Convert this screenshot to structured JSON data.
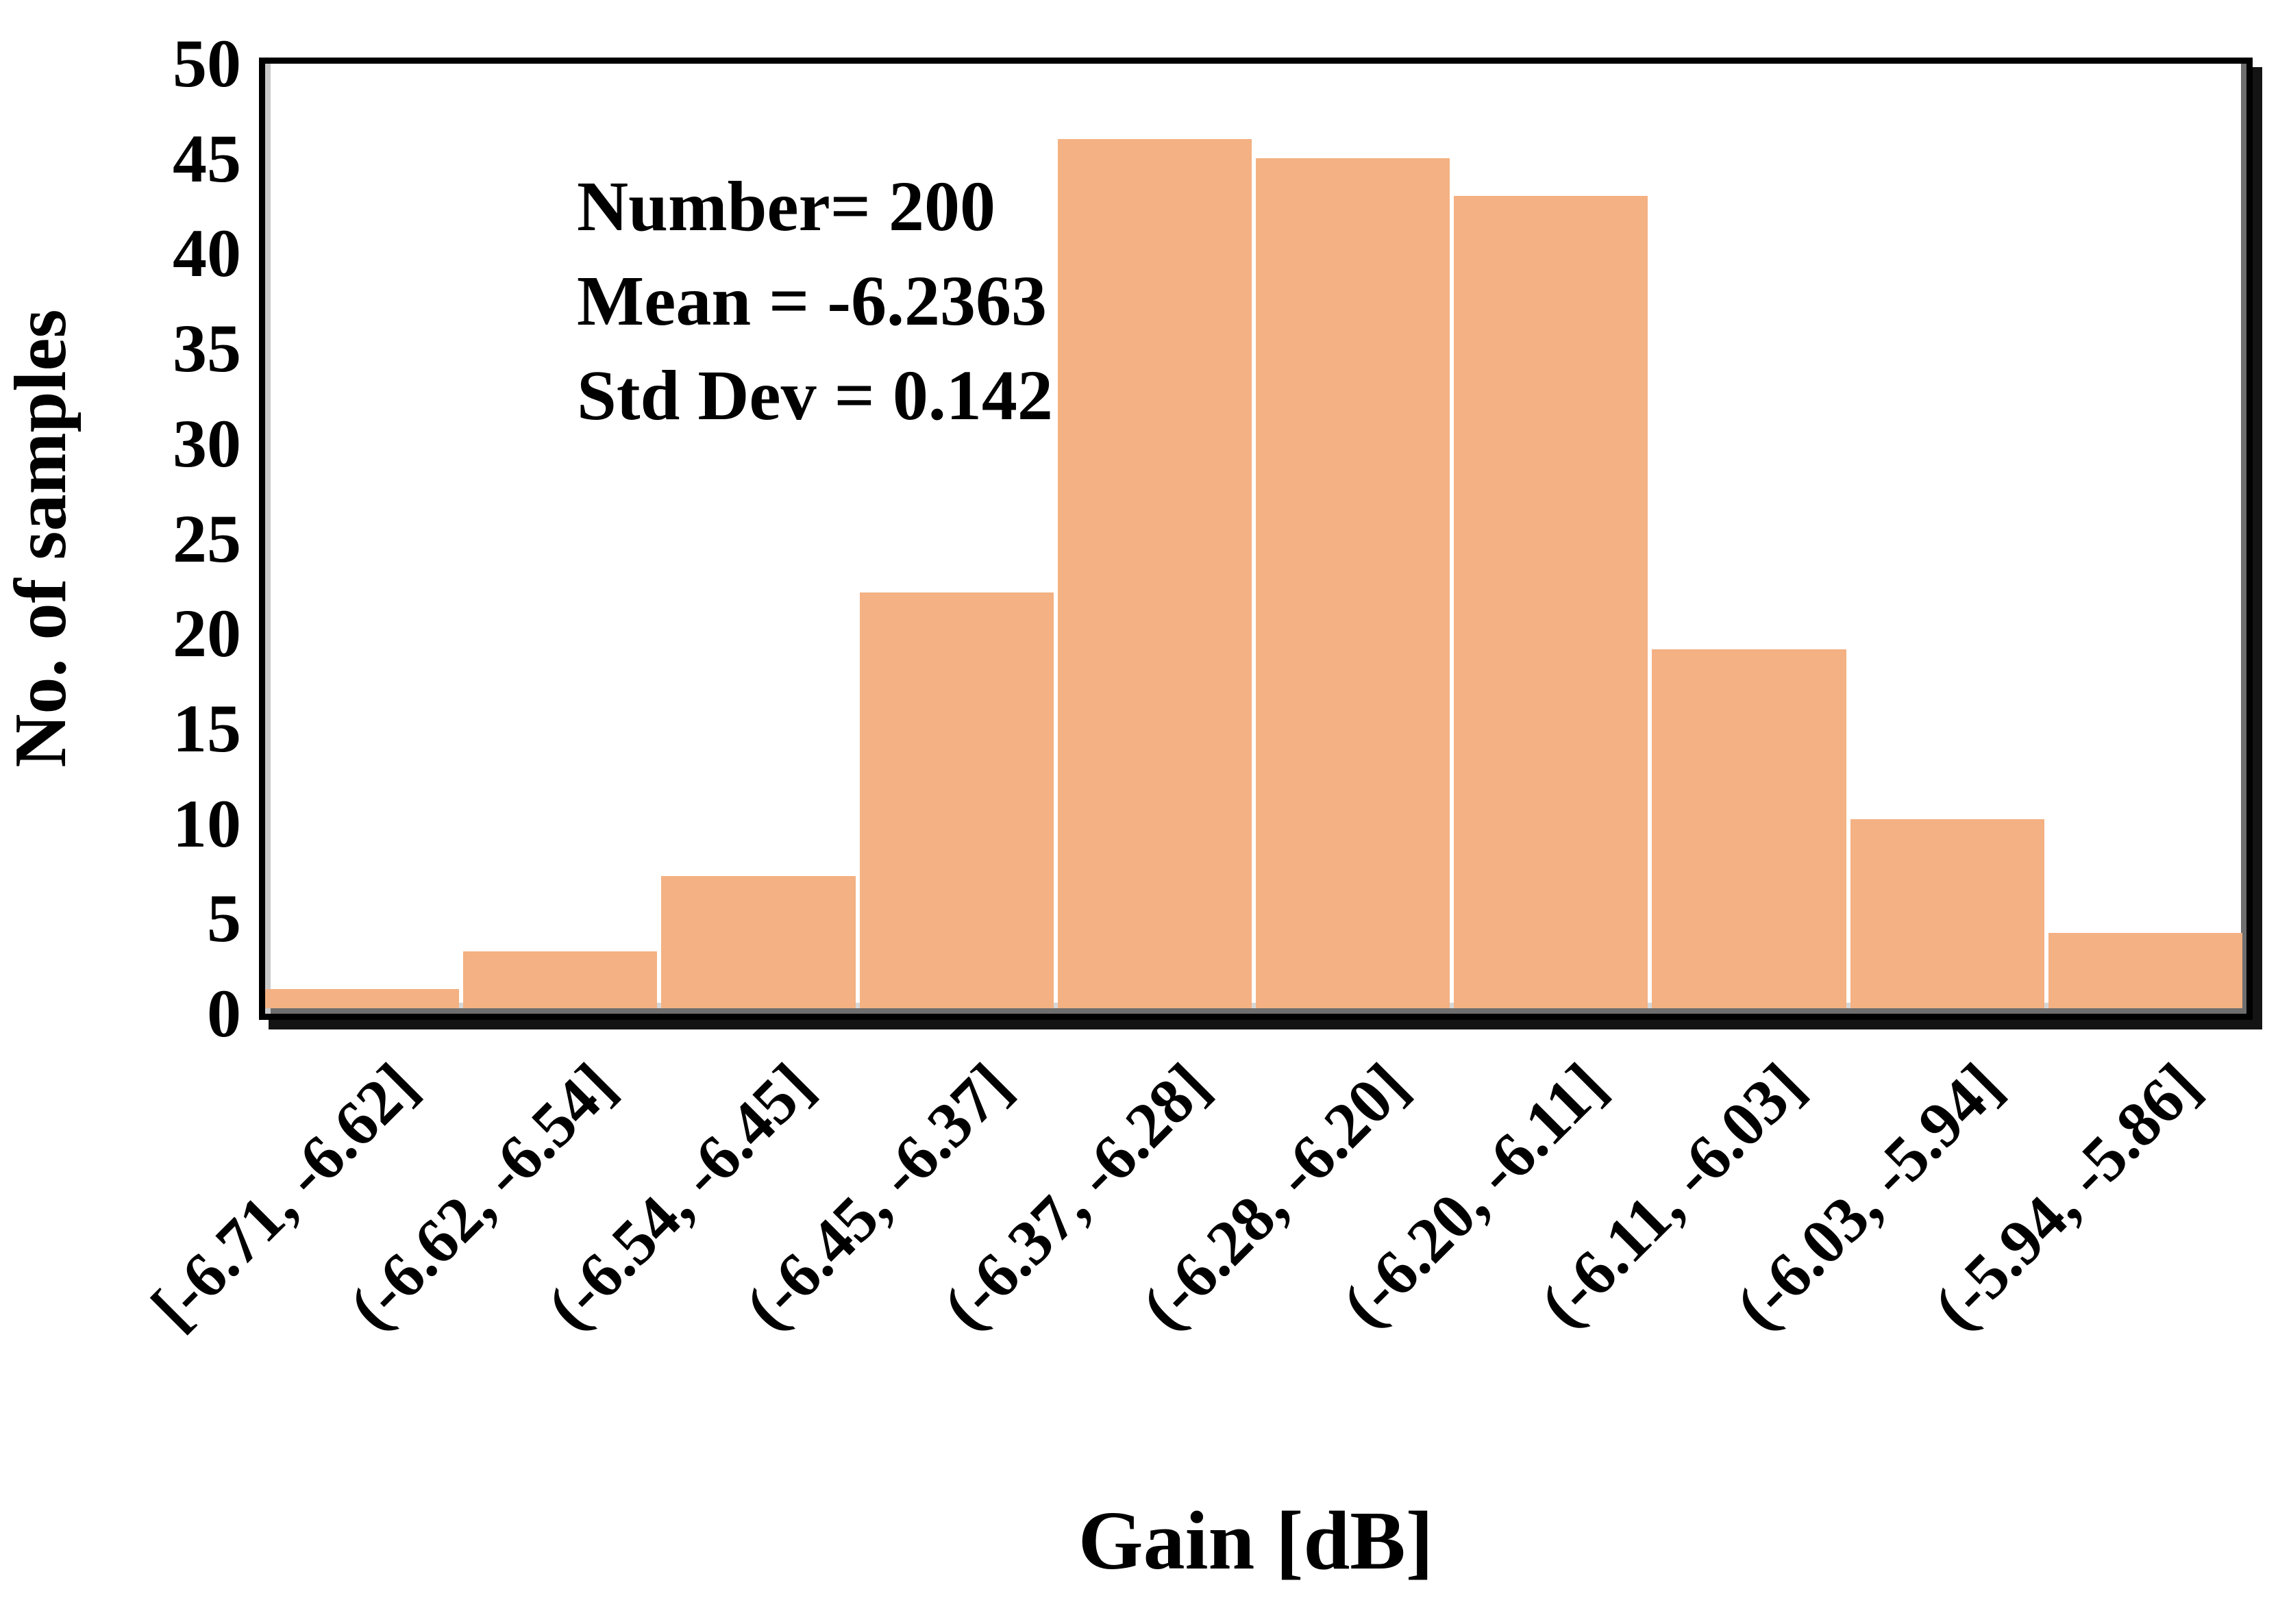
{
  "figure": {
    "background": "#ffffff",
    "bar_color": "#f4b183",
    "frame_color": "#000000",
    "text_color": "#000000"
  },
  "annotation": {
    "number_line": "Number= 200",
    "mean_line": "Mean = -6.2363",
    "std_line": "Std Dev = 0.142"
  },
  "chart_data": {
    "type": "bar",
    "title": "",
    "xlabel": "Gain [dB]",
    "ylabel": "No. of samples",
    "categories": [
      "[-6.71, -6.62]",
      "(-6.62, -6.54]",
      "(-6.54, -6.45]",
      "(-6.45, -6.37]",
      "(-6.37, -6.28]",
      "(-6.28, -6.20]",
      "(-6.20, -6.11]",
      "(-6.11, -6.03]",
      "(-6.03, -5.94]",
      "(-5.94, -5.86]"
    ],
    "values": [
      1,
      3,
      7,
      22,
      46,
      45,
      43,
      19,
      10,
      4
    ],
    "total_samples": 200,
    "mean": -6.2363,
    "std_dev": 0.142,
    "ylim": [
      0,
      50
    ],
    "ytick_step": 5,
    "yticks": [
      0,
      5,
      10,
      15,
      20,
      25,
      30,
      35,
      40,
      45,
      50
    ],
    "bar_color": "#f4b183",
    "grid": false,
    "legend_position": "none",
    "xtick_rotation_deg": 45
  }
}
